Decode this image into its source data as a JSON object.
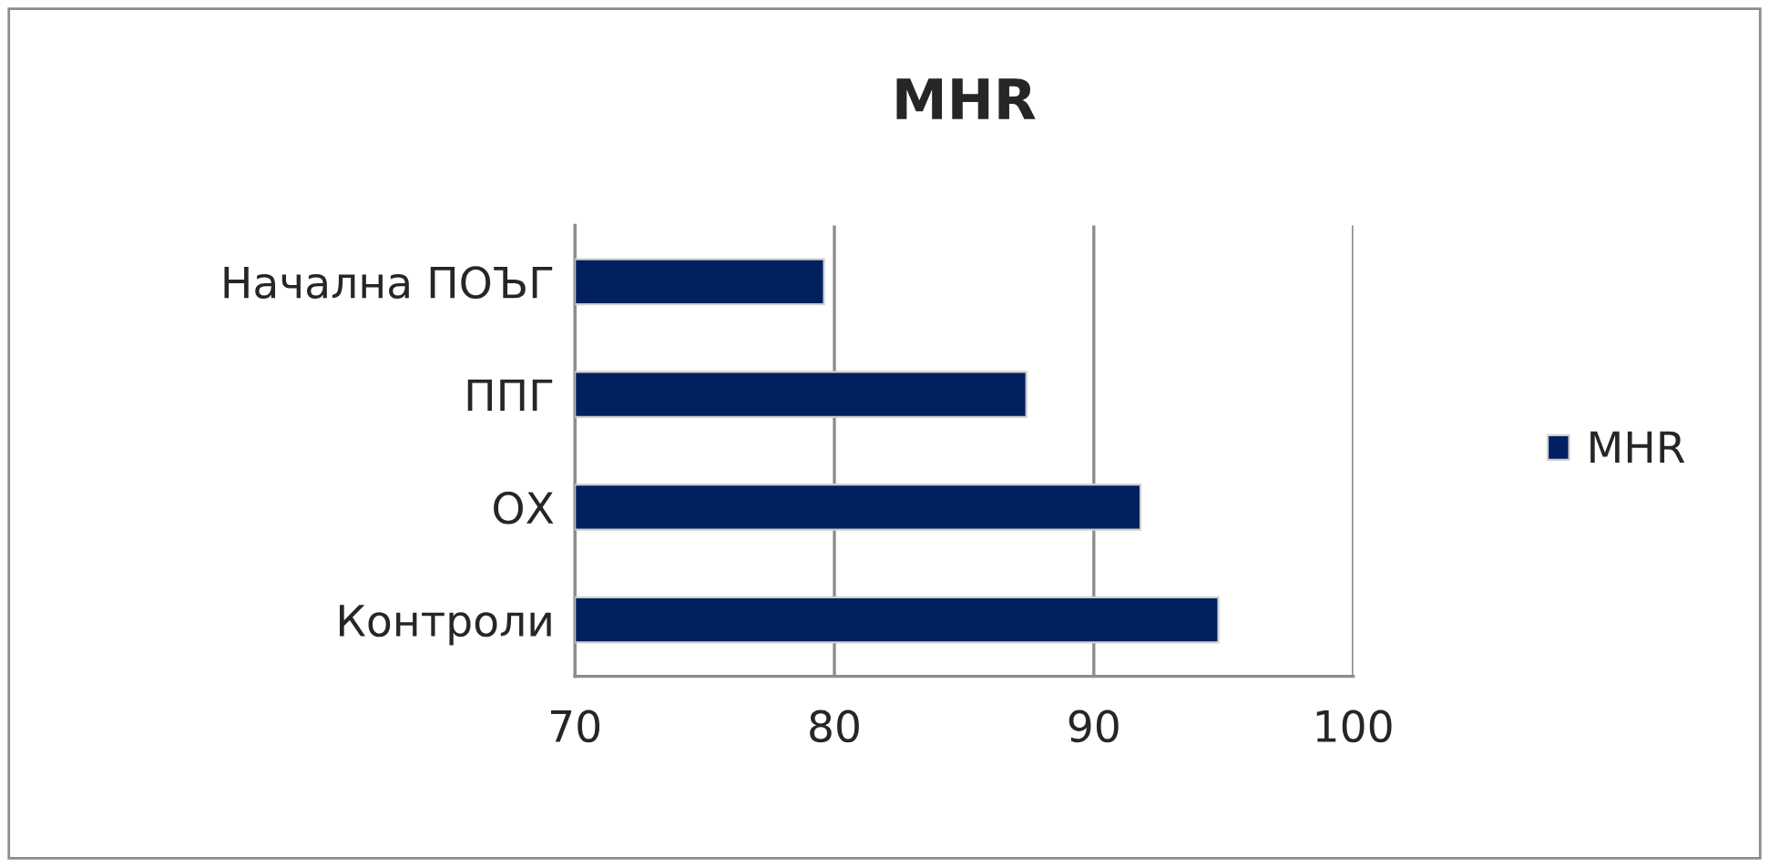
{
  "chart_data": {
    "type": "bar",
    "title": "MHR",
    "orientation": "horizontal",
    "categories": [
      "Начална ПОЪГ",
      "ППГ",
      "ОХ",
      "Контроли"
    ],
    "series": [
      {
        "name": "MHR",
        "color": "#002060",
        "values": [
          79.6,
          87.4,
          91.8,
          94.8
        ]
      }
    ],
    "xlim": [
      70,
      100
    ],
    "xticks": [
      70,
      80,
      90,
      100
    ],
    "grid": "x",
    "legend": "right"
  }
}
